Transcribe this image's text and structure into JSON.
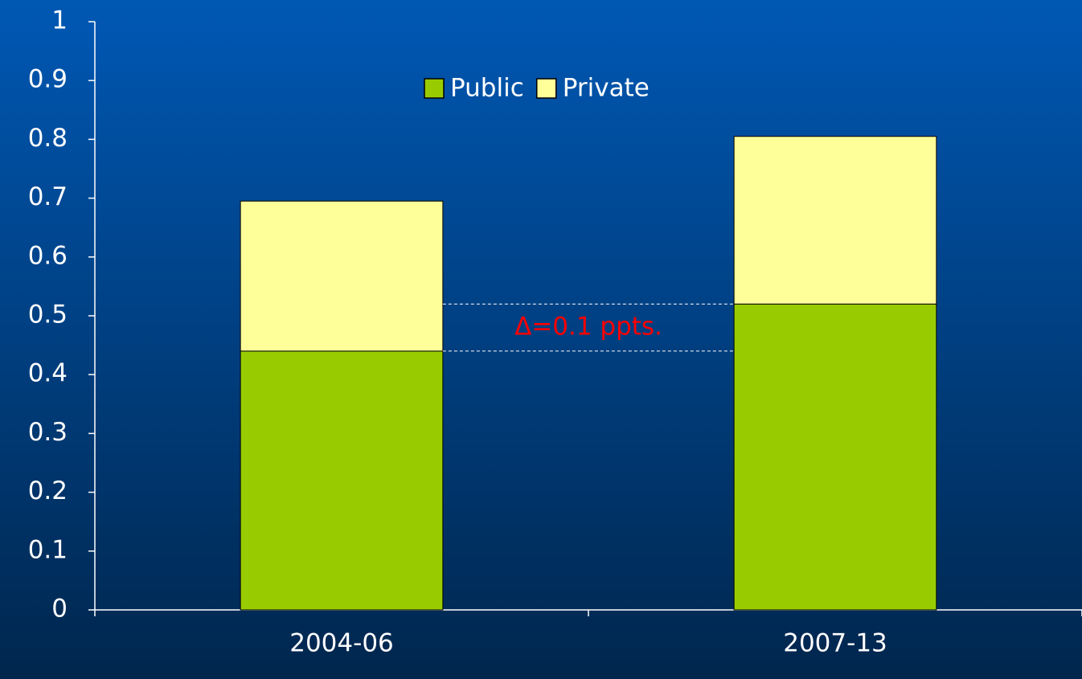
{
  "chart_data": {
    "type": "stacked_bar",
    "categories": [
      "2004-06",
      "2007-13"
    ],
    "series": [
      {
        "name": "Public",
        "color": "#99cc00",
        "values": [
          0.44,
          0.52
        ]
      },
      {
        "name": "Private",
        "color": "#ffff99",
        "values": [
          0.255,
          0.285
        ]
      }
    ],
    "ylim": [
      0,
      1
    ],
    "yticks": [
      0,
      0.1,
      0.2,
      0.3,
      0.4,
      0.5,
      0.6,
      0.7,
      0.8,
      0.9,
      1
    ],
    "legend": "top",
    "annotation": "Δ=0.1 ppts.",
    "annotation_color": "#ff0000"
  }
}
